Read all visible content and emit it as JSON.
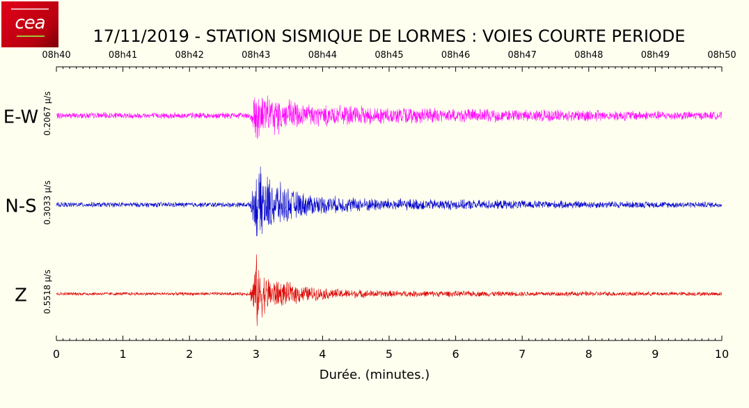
{
  "title": "17/11/2019  -  STATION SISMIQUE DE LORMES : VOIES COURTE PERIODE",
  "colors": {
    "background": "#fffff0",
    "ew": "#ff00ff",
    "ns": "#0000cc",
    "z": "#dd0000"
  },
  "chart_data": {
    "type": "line",
    "title": "17/11/2019  -  STATION SISMIQUE DE LORMES : VOIES COURTE PERIODE",
    "xlabel": "Durée.  (minutes.)",
    "xlim": [
      0,
      10
    ],
    "x_ticks": [
      "0",
      "1",
      "2",
      "3",
      "4",
      "5",
      "6",
      "7",
      "8",
      "9",
      "10"
    ],
    "top_ticks": [
      "08h40",
      "08h41",
      "08h42",
      "08h43",
      "08h44",
      "08h45",
      "08h46",
      "08h47",
      "08h48",
      "08h49",
      "08h50"
    ],
    "series": [
      {
        "name": "E-W",
        "scale_label": "0.2067 µ/s",
        "color": "#ff00ff",
        "envelope_x": [
          0,
          2.9,
          2.95,
          3.0,
          3.05,
          3.2,
          3.4,
          3.6,
          3.8,
          4.0,
          4.5,
          5.0,
          6.0,
          7.0,
          8.0,
          9.0,
          10.0
        ],
        "envelope_amp": [
          0.08,
          0.08,
          0.35,
          1.0,
          0.55,
          0.5,
          0.45,
          0.38,
          0.32,
          0.28,
          0.24,
          0.22,
          0.18,
          0.16,
          0.15,
          0.12,
          0.1
        ]
      },
      {
        "name": "N-S",
        "scale_label": "0.3033 µ/s",
        "color": "#0000cc",
        "envelope_x": [
          0,
          2.9,
          2.95,
          3.0,
          3.05,
          3.2,
          3.4,
          3.6,
          3.8,
          4.0,
          4.5,
          5.0,
          6.0,
          7.0,
          8.0,
          9.0,
          10.0
        ],
        "envelope_amp": [
          0.07,
          0.07,
          0.4,
          0.9,
          1.0,
          0.75,
          0.55,
          0.38,
          0.3,
          0.25,
          0.2,
          0.17,
          0.14,
          0.12,
          0.1,
          0.09,
          0.08
        ]
      },
      {
        "name": "Z",
        "scale_label": "0.5518 µ/s",
        "color": "#dd0000",
        "envelope_x": [
          0,
          2.9,
          2.95,
          3.0,
          3.05,
          3.2,
          3.4,
          3.6,
          3.8,
          4.0,
          4.5,
          5.0,
          6.0,
          7.0,
          8.0,
          9.0,
          10.0
        ],
        "envelope_amp": [
          0.04,
          0.04,
          0.35,
          1.0,
          0.6,
          0.4,
          0.3,
          0.24,
          0.18,
          0.14,
          0.1,
          0.08,
          0.07,
          0.06,
          0.06,
          0.05,
          0.05
        ]
      }
    ]
  }
}
